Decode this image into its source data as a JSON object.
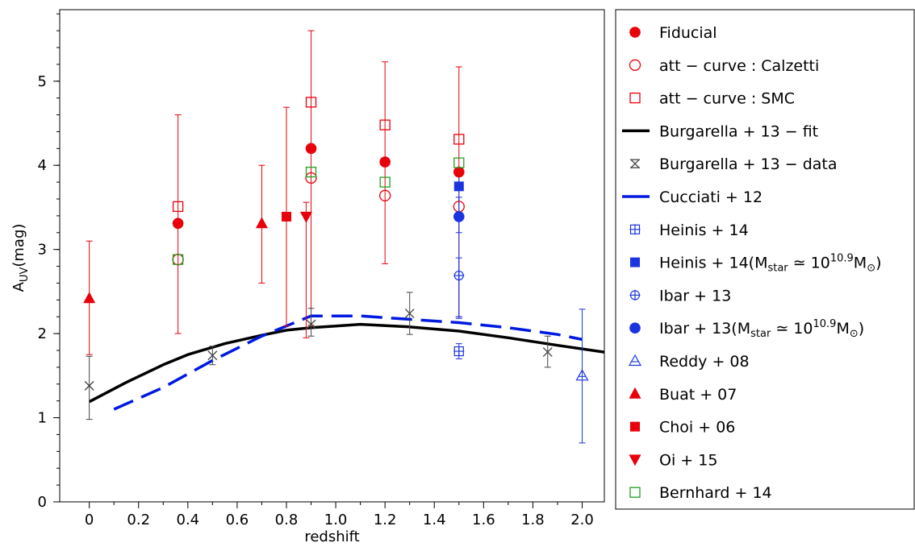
{
  "chart_data": {
    "type": "scatter",
    "xlabel": "redshift",
    "ylabel": "A",
    "ylabel_sub": "UV",
    "ylabel_unit": "(mag)",
    "xlim": [
      -0.12,
      2.09
    ],
    "ylim": [
      0,
      5.85
    ],
    "xticks": [
      0,
      0.2,
      0.4,
      0.6,
      0.8,
      1.0,
      1.2,
      1.4,
      1.6,
      1.8,
      2.0
    ],
    "xtick_labels": [
      "0",
      "0.2",
      "0.4",
      "0.6",
      "0.8",
      "1.0",
      "1.2",
      "1.4",
      "1.6",
      "1.8",
      "2.0"
    ],
    "yticks": [
      0,
      1,
      2,
      3,
      4,
      5
    ],
    "ytick_labels": [
      "0",
      "1",
      "2",
      "3",
      "4",
      "5"
    ],
    "grid": false,
    "legend_position": "right, outside plot",
    "series": [
      {
        "key": "fiducial",
        "name": "Fiducial",
        "marker": "filled-circle",
        "color": "#e8000b",
        "points": [
          {
            "x": 0.36,
            "y": 3.31
          },
          {
            "x": 0.9,
            "y": 4.2
          },
          {
            "x": 1.2,
            "y": 4.04
          },
          {
            "x": 1.5,
            "y": 3.92
          }
        ]
      },
      {
        "key": "calzetti",
        "name": "att − curve : Calzetti",
        "marker": "open-circle",
        "color": "#e8000b",
        "points": [
          {
            "x": 0.36,
            "y": 2.88,
            "lo": 2.0,
            "hi": 4.6
          },
          {
            "x": 0.9,
            "y": 3.85,
            "lo": 2.1,
            "hi": 5.6
          },
          {
            "x": 1.2,
            "y": 3.64,
            "lo": 2.83,
            "hi": 5.23
          },
          {
            "x": 1.5,
            "y": 3.51,
            "lo": 2.2,
            "hi": 5.17
          }
        ]
      },
      {
        "key": "smc",
        "name": "att − curve : SMC",
        "marker": "open-square",
        "color": "#e8000b",
        "points": [
          {
            "x": 0.36,
            "y": 3.51
          },
          {
            "x": 0.9,
            "y": 4.75
          },
          {
            "x": 1.2,
            "y": 4.48
          },
          {
            "x": 1.5,
            "y": 4.31
          }
        ]
      },
      {
        "key": "burg_fit",
        "name": "Burgarella + 13 − fit",
        "type": "line",
        "color": "#000000",
        "points": [
          {
            "x": 0,
            "y": 1.19
          },
          {
            "x": 0.15,
            "y": 1.42
          },
          {
            "x": 0.3,
            "y": 1.63
          },
          {
            "x": 0.4,
            "y": 1.75
          },
          {
            "x": 0.55,
            "y": 1.88
          },
          {
            "x": 0.7,
            "y": 1.98
          },
          {
            "x": 0.8,
            "y": 2.04
          },
          {
            "x": 0.9,
            "y": 2.07
          },
          {
            "x": 1.0,
            "y": 2.09
          },
          {
            "x": 1.1,
            "y": 2.11
          },
          {
            "x": 1.3,
            "y": 2.08
          },
          {
            "x": 1.5,
            "y": 2.03
          },
          {
            "x": 1.7,
            "y": 1.95
          },
          {
            "x": 1.9,
            "y": 1.86
          },
          {
            "x": 2.09,
            "y": 1.78
          }
        ]
      },
      {
        "key": "burg_data",
        "name": "Burgarella + 13 − data",
        "marker": "cross-x",
        "color": "#444444",
        "points": [
          {
            "x": 0,
            "y": 1.38,
            "lo": 0.98,
            "hi": 1.73
          },
          {
            "x": 0.5,
            "y": 1.74,
            "lo": 1.63,
            "hi": 1.85
          },
          {
            "x": 0.9,
            "y": 2.11,
            "lo": 1.97,
            "hi": 2.3
          },
          {
            "x": 1.3,
            "y": 2.24,
            "lo": 1.99,
            "hi": 2.49
          },
          {
            "x": 1.86,
            "y": 1.78,
            "lo": 1.6,
            "hi": 1.97
          }
        ]
      },
      {
        "key": "cucciati",
        "name": "Cucciati + 12",
        "type": "line",
        "dash": true,
        "color": "#0019e0",
        "points": [
          {
            "x": 0.1,
            "y": 1.1
          },
          {
            "x": 0.3,
            "y": 1.36
          },
          {
            "x": 0.5,
            "y": 1.68
          },
          {
            "x": 0.7,
            "y": 1.97
          },
          {
            "x": 0.9,
            "y": 2.21
          },
          {
            "x": 1.1,
            "y": 2.21
          },
          {
            "x": 1.3,
            "y": 2.17
          },
          {
            "x": 1.5,
            "y": 2.13
          },
          {
            "x": 1.7,
            "y": 2.07
          },
          {
            "x": 1.9,
            "y": 1.99
          },
          {
            "x": 2.0,
            "y": 1.93
          }
        ]
      },
      {
        "key": "heinis",
        "name": "Heinis + 14",
        "marker": "open-square-plus",
        "color": "#1a35e0",
        "points": [
          {
            "x": 1.5,
            "y": 1.79,
            "lo": 1.7,
            "hi": 1.88
          }
        ]
      },
      {
        "key": "heinis_m",
        "name": "Heinis + 14(M",
        "name_suffix_sub": "star",
        "name_mid": " ≃ 10",
        "name_sup": "10.9",
        "name_end": "M",
        "name_end_sub": "⊙",
        "name_close": ")",
        "marker": "filled-square",
        "color": "#1a35e0",
        "points": [
          {
            "x": 1.5,
            "y": 3.75,
            "lo": 3.2,
            "hi": 3.95
          }
        ]
      },
      {
        "key": "ibar",
        "name": "Ibar + 13",
        "marker": "open-circle-plus",
        "color": "#1a35e0",
        "points": [
          {
            "x": 1.5,
            "y": 2.69,
            "lo": 2.2,
            "hi": 2.9
          }
        ]
      },
      {
        "key": "ibar_m",
        "name": "Ibar + 13(M",
        "name_suffix_sub": "star",
        "name_mid": " ≃ 10",
        "name_sup": "10.9",
        "name_end": "M",
        "name_end_sub": "⊙",
        "name_close": ")",
        "marker": "filled-circle",
        "color": "#1a35e0",
        "points": [
          {
            "x": 1.5,
            "y": 3.39,
            "lo": 2.18,
            "hi": 3.62
          }
        ]
      },
      {
        "key": "reddy",
        "name": "Reddy + 08",
        "marker": "open-triangle-plus",
        "color": "#1a35e0",
        "points": [
          {
            "x": 2.0,
            "y": 1.5,
            "lo": 0.7,
            "hi": 2.29
          }
        ]
      },
      {
        "key": "buat",
        "name": "Buat + 07",
        "marker": "filled-triangle",
        "color": "#e8000b",
        "points": [
          {
            "x": 0,
            "y": 2.42,
            "lo": 1.75,
            "hi": 3.1
          },
          {
            "x": 0.7,
            "y": 3.31,
            "lo": 2.6,
            "hi": 4.0
          }
        ]
      },
      {
        "key": "choi",
        "name": "Choi + 06",
        "marker": "filled-square",
        "color": "#e8000b",
        "points": [
          {
            "x": 0.8,
            "y": 3.39,
            "lo": 2.09,
            "hi": 4.69
          }
        ]
      },
      {
        "key": "oi",
        "name": "Oi + 15",
        "marker": "filled-triangle-down",
        "color": "#e8000b",
        "points": [
          {
            "x": 0.88,
            "y": 3.39,
            "lo": 1.95,
            "hi": 3.56
          }
        ]
      },
      {
        "key": "bernhard",
        "name": "Bernhard + 14",
        "marker": "open-square",
        "color": "#22a022",
        "points": [
          {
            "x": 0.36,
            "y": 2.88
          },
          {
            "x": 0.9,
            "y": 3.92
          },
          {
            "x": 1.2,
            "y": 3.8
          },
          {
            "x": 1.5,
            "y": 4.03
          }
        ]
      }
    ]
  }
}
